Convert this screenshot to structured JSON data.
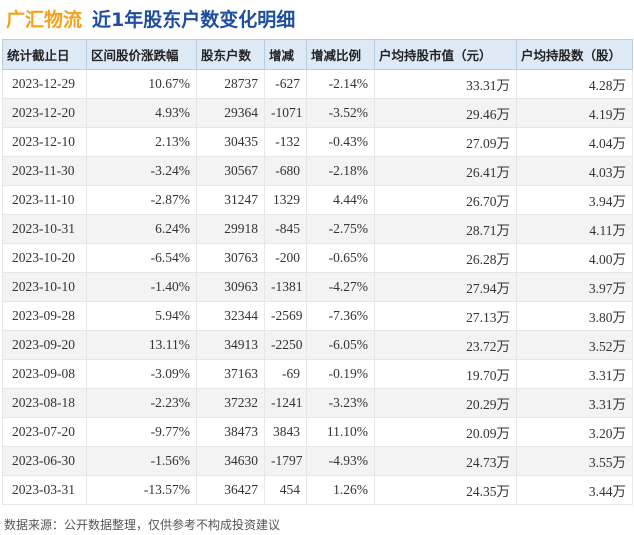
{
  "header": {
    "company": "广汇物流",
    "subtitle": "近1年股东户数变化明细"
  },
  "table": {
    "columns": [
      "统计截止日",
      "区间股价涨跌幅",
      "股东户数",
      "增减",
      "增减比例",
      "户均持股市值（元）",
      "户均持股数（股）"
    ],
    "rows": [
      {
        "date": "2023-12-29",
        "price_change": "10.67%",
        "holders": "28737",
        "delta": "-627",
        "ratio": "-2.14%",
        "avg_value": "33.31万",
        "avg_shares": "4.28万"
      },
      {
        "date": "2023-12-20",
        "price_change": "4.93%",
        "holders": "29364",
        "delta": "-1071",
        "ratio": "-3.52%",
        "avg_value": "29.46万",
        "avg_shares": "4.19万"
      },
      {
        "date": "2023-12-10",
        "price_change": "2.13%",
        "holders": "30435",
        "delta": "-132",
        "ratio": "-0.43%",
        "avg_value": "27.09万",
        "avg_shares": "4.04万"
      },
      {
        "date": "2023-11-30",
        "price_change": "-3.24%",
        "holders": "30567",
        "delta": "-680",
        "ratio": "-2.18%",
        "avg_value": "26.41万",
        "avg_shares": "4.03万"
      },
      {
        "date": "2023-11-10",
        "price_change": "-2.87%",
        "holders": "31247",
        "delta": "1329",
        "ratio": "4.44%",
        "avg_value": "26.70万",
        "avg_shares": "3.94万"
      },
      {
        "date": "2023-10-31",
        "price_change": "6.24%",
        "holders": "29918",
        "delta": "-845",
        "ratio": "-2.75%",
        "avg_value": "28.71万",
        "avg_shares": "4.11万"
      },
      {
        "date": "2023-10-20",
        "price_change": "-6.54%",
        "holders": "30763",
        "delta": "-200",
        "ratio": "-0.65%",
        "avg_value": "26.28万",
        "avg_shares": "4.00万"
      },
      {
        "date": "2023-10-10",
        "price_change": "-1.40%",
        "holders": "30963",
        "delta": "-1381",
        "ratio": "-4.27%",
        "avg_value": "27.94万",
        "avg_shares": "3.97万"
      },
      {
        "date": "2023-09-28",
        "price_change": "5.94%",
        "holders": "32344",
        "delta": "-2569",
        "ratio": "-7.36%",
        "avg_value": "27.13万",
        "avg_shares": "3.80万"
      },
      {
        "date": "2023-09-20",
        "price_change": "13.11%",
        "holders": "34913",
        "delta": "-2250",
        "ratio": "-6.05%",
        "avg_value": "23.72万",
        "avg_shares": "3.52万"
      },
      {
        "date": "2023-09-08",
        "price_change": "-3.09%",
        "holders": "37163",
        "delta": "-69",
        "ratio": "-0.19%",
        "avg_value": "19.70万",
        "avg_shares": "3.31万"
      },
      {
        "date": "2023-08-18",
        "price_change": "-2.23%",
        "holders": "37232",
        "delta": "-1241",
        "ratio": "-3.23%",
        "avg_value": "20.29万",
        "avg_shares": "3.31万"
      },
      {
        "date": "2023-07-20",
        "price_change": "-9.77%",
        "holders": "38473",
        "delta": "3843",
        "ratio": "11.10%",
        "avg_value": "20.09万",
        "avg_shares": "3.20万"
      },
      {
        "date": "2023-06-30",
        "price_change": "-1.56%",
        "holders": "34630",
        "delta": "-1797",
        "ratio": "-4.93%",
        "avg_value": "24.73万",
        "avg_shares": "3.55万"
      },
      {
        "date": "2023-03-31",
        "price_change": "-13.57%",
        "holders": "36427",
        "delta": "454",
        "ratio": "1.26%",
        "avg_value": "24.35万",
        "avg_shares": "3.44万"
      }
    ]
  },
  "footer": {
    "note": "数据来源：公开数据整理，仅供参考不构成投资建议"
  },
  "colors": {
    "company": "#f5a21b",
    "subtitle": "#1d4f9e",
    "header_bg": "#ddeaf5",
    "up": "#e03030",
    "down": "#1a9c3a"
  }
}
